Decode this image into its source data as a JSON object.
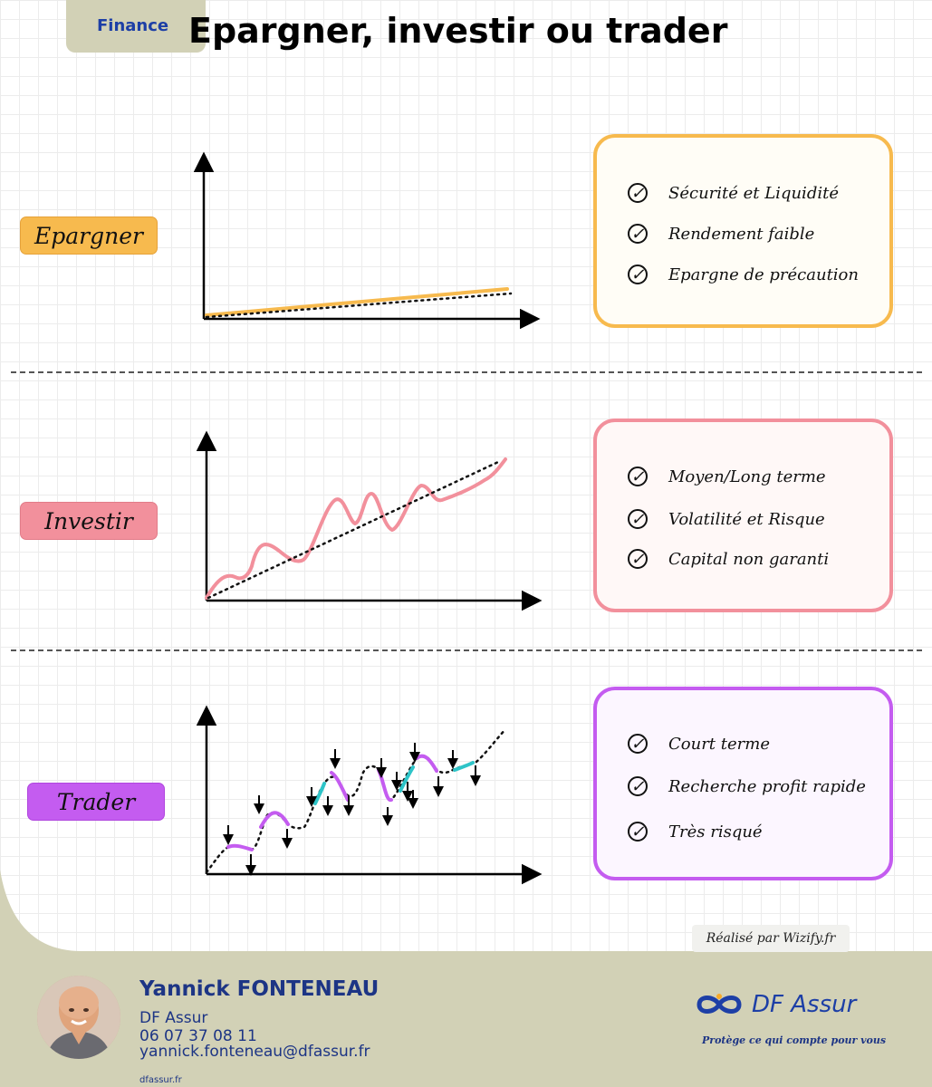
{
  "header": {
    "tag": "Finance",
    "title": "Epargner, investir ou trader"
  },
  "sections": [
    {
      "label": "Epargner",
      "color": "#f7ba4e",
      "card_bg": "#fffdf6",
      "bullets": [
        "Sécurité et Liquidité",
        "Rendement faible",
        "Epargne de précaution"
      ]
    },
    {
      "label": "Investir",
      "color": "#f2909c",
      "card_bg": "#fff8f7",
      "bullets": [
        "Moyen/Long terme",
        "Volatilité et Risque",
        "Capital non garanti"
      ]
    },
    {
      "label": "Trader",
      "color": "#c45cf0",
      "card_bg": "#fcf6ff",
      "secondary_color": "#2ec4c8",
      "bullets": [
        "Court terme",
        "Recherche profit rapide",
        "Très risqué"
      ]
    }
  ],
  "credit": "Réalisé par Wizify.fr",
  "footer": {
    "name": "Yannick FONTENEAU",
    "company": "DF Assur",
    "phone": "06 07 37 08 11",
    "email": "yannick.fonteneau@dfassur.fr",
    "site": "dfassur.fr",
    "brand": "DF Assur",
    "tagline": "Protège ce qui compte pour vous",
    "brand_color": "#1d3fa6",
    "bg_color": "#d2d1b6"
  },
  "icons": {
    "check": "check-circle-icon",
    "logo": "infinity-logo-icon",
    "avatar": "person-photo"
  }
}
